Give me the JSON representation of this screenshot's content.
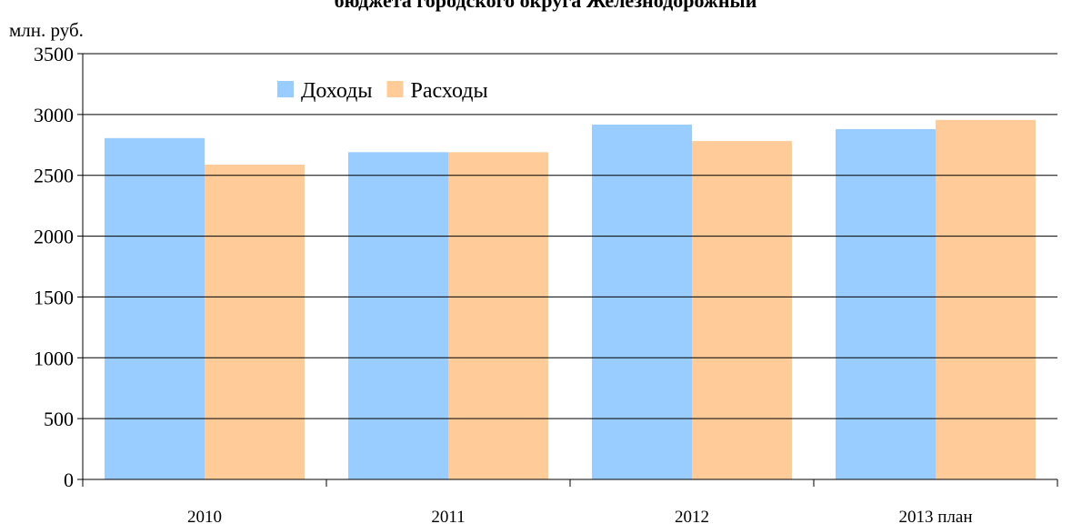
{
  "chart_data": {
    "type": "bar",
    "title": "бюджета городского округа Железнодорожный",
    "y_label": "млн. руб.",
    "categories": [
      "2010",
      "2011",
      "2012",
      "2013 план"
    ],
    "series": [
      {
        "name": "Доходы",
        "color": "#99ccff",
        "values": [
          2806,
          2690,
          2917,
          2880
        ]
      },
      {
        "name": "Расходы",
        "color": "#ffcc99",
        "values": [
          2588,
          2690,
          2782,
          2955
        ]
      }
    ],
    "ylim": [
      0,
      3500
    ],
    "yticks": [
      0,
      500,
      1000,
      1500,
      2000,
      2500,
      3000,
      3500
    ],
    "grid": true,
    "legend": "top-left"
  }
}
